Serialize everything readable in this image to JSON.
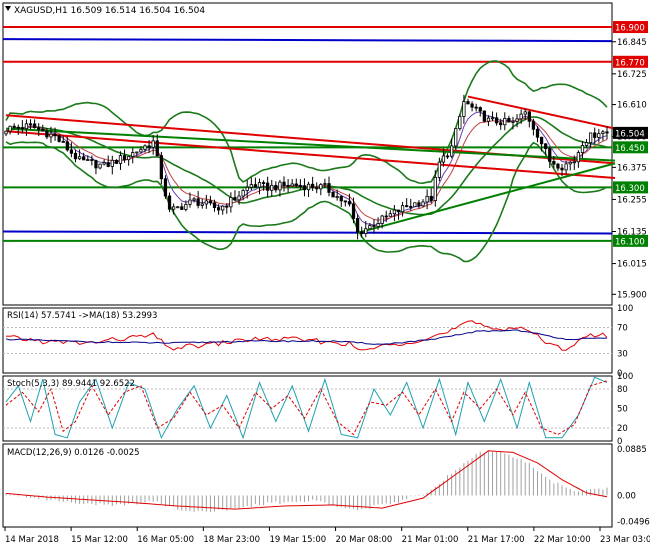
{
  "chart_data": [
    {
      "type": "candlestick",
      "panel": "price",
      "symbol_label": "XAGUSD,H1",
      "ohlc_label": "16.509 16.514 16.504 16.504",
      "ylim": [
        15.86,
        16.99
      ],
      "ticks": [
        {
          "v": 15.9,
          "label": "15.900"
        },
        {
          "v": 16.015,
          "label": "16.015"
        },
        {
          "v": 16.135,
          "label": "16.135"
        },
        {
          "v": 16.255,
          "label": "16.255"
        },
        {
          "v": 16.375,
          "label": "16.375"
        },
        {
          "v": 16.49,
          "label": "16.490"
        },
        {
          "v": 16.61,
          "label": "16.610"
        },
        {
          "v": 16.725,
          "label": "16.725"
        },
        {
          "v": 16.845,
          "label": "16.845"
        }
      ],
      "price_tags": [
        {
          "v": 16.9,
          "label": "16.900",
          "bg": "#e00000",
          "line": "#e00000"
        },
        {
          "v": 16.77,
          "label": "16.770",
          "bg": "#e00000",
          "line": "#e00000"
        },
        {
          "v": 16.504,
          "label": "16.504",
          "bg": "#000000",
          "line": ""
        },
        {
          "v": 16.45,
          "label": "16.450",
          "bg": "#008000",
          "line": "#008000"
        },
        {
          "v": 16.3,
          "label": "16.300",
          "bg": "#008000",
          "line": "#008000"
        },
        {
          "v": 16.1,
          "label": "16.100",
          "bg": "#008000",
          "line": "#008000"
        }
      ],
      "x_labels": [
        "14 Mar 2018",
        "15 Mar 12:00",
        "16 Mar 05:00",
        "18 Mar 23:00",
        "19 Mar 15:00",
        "20 Mar 08:00",
        "21 Mar 01:00",
        "21 Mar 17:00",
        "22 Mar 10:00",
        "23 Mar 03:00"
      ],
      "anchors": [
        {
          "i": 0,
          "v": 16.52
        },
        {
          "i": 6,
          "v": 16.53
        },
        {
          "i": 12,
          "v": 16.49
        },
        {
          "i": 18,
          "v": 16.4
        },
        {
          "i": 24,
          "v": 16.38
        },
        {
          "i": 30,
          "v": 16.42
        },
        {
          "i": 36,
          "v": 16.47
        },
        {
          "i": 40,
          "v": 16.21
        },
        {
          "i": 46,
          "v": 16.25
        },
        {
          "i": 52,
          "v": 16.22
        },
        {
          "i": 56,
          "v": 16.26
        },
        {
          "i": 60,
          "v": 16.31
        },
        {
          "i": 64,
          "v": 16.3
        },
        {
          "i": 70,
          "v": 16.31
        },
        {
          "i": 78,
          "v": 16.3
        },
        {
          "i": 84,
          "v": 16.23
        },
        {
          "i": 86,
          "v": 16.13
        },
        {
          "i": 92,
          "v": 16.18
        },
        {
          "i": 98,
          "v": 16.23
        },
        {
          "i": 104,
          "v": 16.26
        },
        {
          "i": 106,
          "v": 16.39
        },
        {
          "i": 109,
          "v": 16.45
        },
        {
          "i": 112,
          "v": 16.62
        },
        {
          "i": 118,
          "v": 16.55
        },
        {
          "i": 124,
          "v": 16.54
        },
        {
          "i": 127,
          "v": 16.58
        },
        {
          "i": 130,
          "v": 16.5
        },
        {
          "i": 133,
          "v": 16.4
        },
        {
          "i": 136,
          "v": 16.38
        },
        {
          "i": 139,
          "v": 16.4
        },
        {
          "i": 141,
          "v": 16.47
        },
        {
          "i": 145,
          "v": 16.51
        },
        {
          "i": 147,
          "v": 16.504
        }
      ],
      "trendlines": [
        {
          "x0": 0,
          "y0": 16.57,
          "x1": 147,
          "y1": 16.39,
          "color": "#e00000"
        },
        {
          "x0": 0,
          "y0": 16.51,
          "x1": 147,
          "y1": 16.335,
          "color": "#e00000"
        },
        {
          "x0": 113,
          "y0": 16.64,
          "x1": 147,
          "y1": 16.52,
          "color": "#e00000"
        },
        {
          "x0": 0,
          "y0": 16.52,
          "x1": 147,
          "y1": 16.4,
          "color": "#008000"
        },
        {
          "x0": 86,
          "y0": 16.13,
          "x1": 147,
          "y1": 16.39,
          "color": "#008000"
        }
      ],
      "blue_levels": [
        16.855,
        16.135
      ]
    },
    {
      "type": "line",
      "panel": "rsi",
      "label": "RSI(14) 57.5741  ->MA(18) 53.2993",
      "ylim": [
        0,
        100
      ],
      "ticks": [
        {
          "v": 100,
          "label": "100"
        },
        {
          "v": 70,
          "label": "70"
        },
        {
          "v": 30,
          "label": "30"
        },
        {
          "v": 0,
          "label": "0"
        }
      ],
      "series": [
        {
          "color": "#e00000",
          "anchors": [
            {
              "i": 0,
              "v": 55
            },
            {
              "i": 10,
              "v": 48
            },
            {
              "i": 20,
              "v": 46
            },
            {
              "i": 30,
              "v": 54
            },
            {
              "i": 36,
              "v": 58
            },
            {
              "i": 40,
              "v": 38
            },
            {
              "i": 50,
              "v": 44
            },
            {
              "i": 60,
              "v": 52
            },
            {
              "i": 70,
              "v": 52
            },
            {
              "i": 84,
              "v": 45
            },
            {
              "i": 86,
              "v": 34
            },
            {
              "i": 100,
              "v": 50
            },
            {
              "i": 108,
              "v": 62
            },
            {
              "i": 113,
              "v": 78
            },
            {
              "i": 120,
              "v": 68
            },
            {
              "i": 127,
              "v": 70
            },
            {
              "i": 133,
              "v": 42
            },
            {
              "i": 137,
              "v": 38
            },
            {
              "i": 142,
              "v": 57
            },
            {
              "i": 147,
              "v": 57.57
            }
          ]
        },
        {
          "color": "#00008b",
          "anchors": [
            {
              "i": 0,
              "v": 52
            },
            {
              "i": 20,
              "v": 48
            },
            {
              "i": 40,
              "v": 46
            },
            {
              "i": 60,
              "v": 49
            },
            {
              "i": 80,
              "v": 49
            },
            {
              "i": 92,
              "v": 44
            },
            {
              "i": 105,
              "v": 52
            },
            {
              "i": 115,
              "v": 64
            },
            {
              "i": 125,
              "v": 66
            },
            {
              "i": 137,
              "v": 52
            },
            {
              "i": 147,
              "v": 53.3
            }
          ]
        }
      ]
    },
    {
      "type": "line",
      "panel": "stochastic",
      "label": "Stoch(5,3,3) 89.9441 92.6522",
      "ylim": [
        0,
        100
      ],
      "ticks": [
        {
          "v": 100,
          "label": "100"
        },
        {
          "v": 80,
          "label": "80"
        },
        {
          "v": 50,
          "label": "50"
        },
        {
          "v": 20,
          "label": "20"
        },
        {
          "v": 0,
          "label": "0"
        }
      ],
      "series": [
        {
          "color": "#20a0b0",
          "anchors": [
            {
              "i": 0,
              "v": 60
            },
            {
              "i": 3,
              "v": 85
            },
            {
              "i": 6,
              "v": 30
            },
            {
              "i": 9,
              "v": 95
            },
            {
              "i": 12,
              "v": 10
            },
            {
              "i": 15,
              "v": 5
            },
            {
              "i": 18,
              "v": 60
            },
            {
              "i": 22,
              "v": 95
            },
            {
              "i": 26,
              "v": 20
            },
            {
              "i": 30,
              "v": 90
            },
            {
              "i": 34,
              "v": 80
            },
            {
              "i": 38,
              "v": 5
            },
            {
              "i": 42,
              "v": 50
            },
            {
              "i": 46,
              "v": 85
            },
            {
              "i": 50,
              "v": 20
            },
            {
              "i": 54,
              "v": 70
            },
            {
              "i": 58,
              "v": 5
            },
            {
              "i": 62,
              "v": 90
            },
            {
              "i": 66,
              "v": 30
            },
            {
              "i": 70,
              "v": 85
            },
            {
              "i": 74,
              "v": 15
            },
            {
              "i": 78,
              "v": 95
            },
            {
              "i": 82,
              "v": 10
            },
            {
              "i": 86,
              "v": 5
            },
            {
              "i": 90,
              "v": 80
            },
            {
              "i": 94,
              "v": 40
            },
            {
              "i": 98,
              "v": 90
            },
            {
              "i": 102,
              "v": 20
            },
            {
              "i": 106,
              "v": 95
            },
            {
              "i": 110,
              "v": 10
            },
            {
              "i": 113,
              "v": 90
            },
            {
              "i": 117,
              "v": 30
            },
            {
              "i": 121,
              "v": 95
            },
            {
              "i": 125,
              "v": 20
            },
            {
              "i": 128,
              "v": 90
            },
            {
              "i": 132,
              "v": 5
            },
            {
              "i": 136,
              "v": 5
            },
            {
              "i": 140,
              "v": 40
            },
            {
              "i": 144,
              "v": 98
            },
            {
              "i": 147,
              "v": 89.94
            }
          ]
        },
        {
          "color": "#e00000",
          "anchors": [
            {
              "i": 0,
              "v": 55
            },
            {
              "i": 4,
              "v": 75
            },
            {
              "i": 8,
              "v": 45
            },
            {
              "i": 11,
              "v": 80
            },
            {
              "i": 14,
              "v": 15
            },
            {
              "i": 17,
              "v": 30
            },
            {
              "i": 21,
              "v": 85
            },
            {
              "i": 25,
              "v": 40
            },
            {
              "i": 29,
              "v": 75
            },
            {
              "i": 33,
              "v": 85
            },
            {
              "i": 37,
              "v": 20
            },
            {
              "i": 41,
              "v": 35
            },
            {
              "i": 45,
              "v": 75
            },
            {
              "i": 49,
              "v": 40
            },
            {
              "i": 53,
              "v": 55
            },
            {
              "i": 57,
              "v": 20
            },
            {
              "i": 61,
              "v": 75
            },
            {
              "i": 65,
              "v": 50
            },
            {
              "i": 69,
              "v": 70
            },
            {
              "i": 73,
              "v": 35
            },
            {
              "i": 77,
              "v": 80
            },
            {
              "i": 81,
              "v": 30
            },
            {
              "i": 85,
              "v": 10
            },
            {
              "i": 89,
              "v": 60
            },
            {
              "i": 93,
              "v": 55
            },
            {
              "i": 97,
              "v": 75
            },
            {
              "i": 101,
              "v": 40
            },
            {
              "i": 105,
              "v": 80
            },
            {
              "i": 109,
              "v": 30
            },
            {
              "i": 112,
              "v": 75
            },
            {
              "i": 116,
              "v": 50
            },
            {
              "i": 120,
              "v": 80
            },
            {
              "i": 124,
              "v": 40
            },
            {
              "i": 127,
              "v": 75
            },
            {
              "i": 131,
              "v": 20
            },
            {
              "i": 135,
              "v": 10
            },
            {
              "i": 139,
              "v": 25
            },
            {
              "i": 143,
              "v": 85
            },
            {
              "i": 147,
              "v": 92.65
            }
          ]
        }
      ]
    },
    {
      "type": "histogram+line",
      "panel": "macd",
      "label": "MACD(12,26,9) 0.0126 -0.0025",
      "ylim": [
        -0.06,
        0.098
      ],
      "ticks": [
        {
          "v": 0.0885,
          "label": "0.0885"
        },
        {
          "v": 0.0,
          "label": "0.00"
        },
        {
          "v": -0.0496,
          "label": "-0.0496"
        }
      ],
      "histogram": {
        "color": "#a0a0a0",
        "anchors": [
          {
            "i": 0,
            "v": 0.005
          },
          {
            "i": 8,
            "v": -0.005
          },
          {
            "i": 16,
            "v": -0.012
          },
          {
            "i": 26,
            "v": -0.02
          },
          {
            "i": 36,
            "v": -0.01
          },
          {
            "i": 44,
            "v": -0.03
          },
          {
            "i": 54,
            "v": -0.028
          },
          {
            "i": 64,
            "v": -0.015
          },
          {
            "i": 76,
            "v": -0.01
          },
          {
            "i": 86,
            "v": -0.028
          },
          {
            "i": 96,
            "v": -0.012
          },
          {
            "i": 104,
            "v": 0.01
          },
          {
            "i": 110,
            "v": 0.05
          },
          {
            "i": 116,
            "v": 0.085
          },
          {
            "i": 122,
            "v": 0.08
          },
          {
            "i": 128,
            "v": 0.06
          },
          {
            "i": 134,
            "v": 0.025
          },
          {
            "i": 140,
            "v": 0.008
          },
          {
            "i": 147,
            "v": 0.0126
          }
        ]
      },
      "signal": {
        "color": "#e00000",
        "anchors": [
          {
            "i": 0,
            "v": 0.004
          },
          {
            "i": 10,
            "v": -0.003
          },
          {
            "i": 20,
            "v": -0.008
          },
          {
            "i": 30,
            "v": -0.013
          },
          {
            "i": 42,
            "v": -0.02
          },
          {
            "i": 56,
            "v": -0.026
          },
          {
            "i": 68,
            "v": -0.02
          },
          {
            "i": 80,
            "v": -0.018
          },
          {
            "i": 92,
            "v": -0.024
          },
          {
            "i": 102,
            "v": -0.005
          },
          {
            "i": 110,
            "v": 0.04
          },
          {
            "i": 118,
            "v": 0.085
          },
          {
            "i": 124,
            "v": 0.082
          },
          {
            "i": 130,
            "v": 0.062
          },
          {
            "i": 136,
            "v": 0.03
          },
          {
            "i": 142,
            "v": 0.005
          },
          {
            "i": 147,
            "v": -0.0025
          }
        ]
      }
    }
  ]
}
